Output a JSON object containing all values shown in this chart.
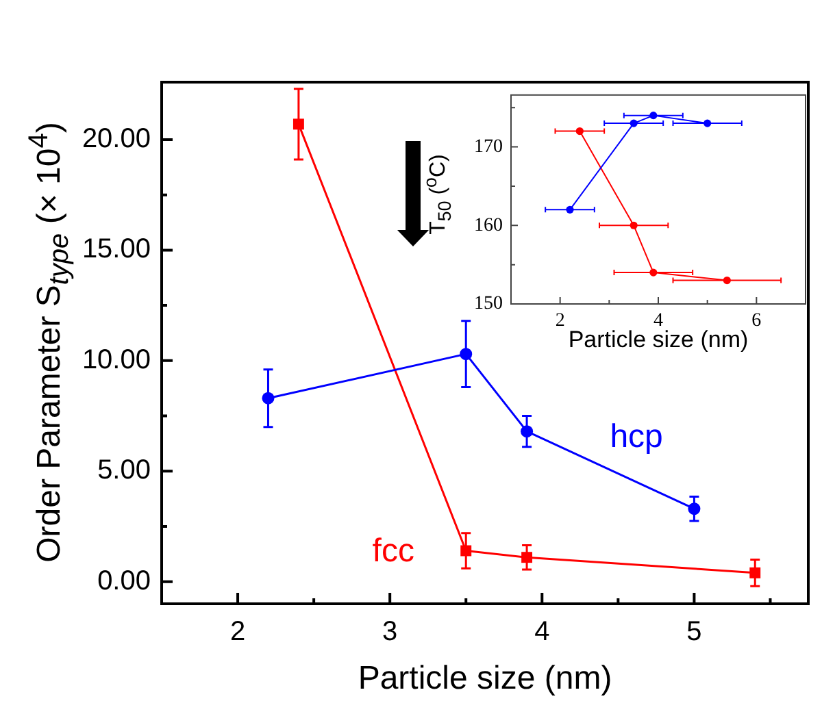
{
  "chart_data": [
    {
      "type": "line",
      "xlabel": "Particle size (nm)",
      "ylabel": "Order Parameter S$_{type}$ (× 10$^{4}$)",
      "xlim": [
        1.5,
        5.75
      ],
      "xticks": [
        2,
        {
          "value": 2.5,
          "label": null
        },
        3,
        {
          "value": 3.5,
          "label": null
        },
        4,
        {
          "value": 4.5,
          "label": null
        },
        5,
        {
          "value": 5.5,
          "label": null
        }
      ],
      "ylim": [
        -1,
        22.6
      ],
      "yticks": [
        {
          "value": 0,
          "label": "0.00"
        },
        {
          "value": 2.5,
          "label": null
        },
        {
          "value": 5,
          "label": "5.00"
        },
        {
          "value": 7.5,
          "label": null
        },
        {
          "value": 10,
          "label": "10.00"
        },
        {
          "value": 12.5,
          "label": null
        },
        {
          "value": 15,
          "label": "15.00"
        },
        {
          "value": 17.5,
          "label": null
        },
        {
          "value": 20,
          "label": "20.00"
        }
      ],
      "series": [
        {
          "name": "hcp",
          "color": "#0000ff",
          "marker": "circle",
          "x": [
            2.2,
            3.5,
            3.9,
            5.0
          ],
          "values": [
            8.3,
            10.3,
            6.8,
            3.3
          ],
          "errors": [
            1.3,
            1.5,
            0.7,
            0.55
          ]
        },
        {
          "name": "fcc",
          "color": "#ff0000",
          "marker": "square",
          "x": [
            2.4,
            3.5,
            3.9,
            5.4
          ],
          "values": [
            20.7,
            1.4,
            1.1,
            0.4
          ],
          "errors": [
            1.6,
            0.8,
            0.55,
            0.6
          ]
        }
      ]
    },
    {
      "type": "line",
      "xlabel": "Particle size (nm)",
      "ylabel": "T$_{50}$ ($^{o}$C)",
      "xlim": [
        1,
        7
      ],
      "xticks": [
        2,
        {
          "value": 3,
          "label": null
        },
        4,
        {
          "value": 5,
          "label": null
        },
        6
      ],
      "ylim": [
        150,
        176.6
      ],
      "yticks": [
        150,
        {
          "value": 155,
          "label": null
        },
        160,
        {
          "value": 165,
          "label": null
        },
        170,
        {
          "value": 175,
          "label": null
        }
      ],
      "marker": "circle",
      "series": [
        {
          "color": "#0000ff",
          "x": [
            2.2,
            3.5,
            3.9,
            5.0
          ],
          "values": [
            162,
            173,
            174,
            173
          ],
          "xerrors": [
            0.5,
            0.6,
            0.6,
            0.7
          ]
        },
        {
          "color": "#ff0000",
          "x": [
            2.4,
            3.5,
            3.9,
            5.4
          ],
          "values": [
            172,
            160,
            154,
            153
          ],
          "xerrors": [
            0.5,
            0.7,
            0.8,
            1.1
          ]
        }
      ]
    }
  ]
}
